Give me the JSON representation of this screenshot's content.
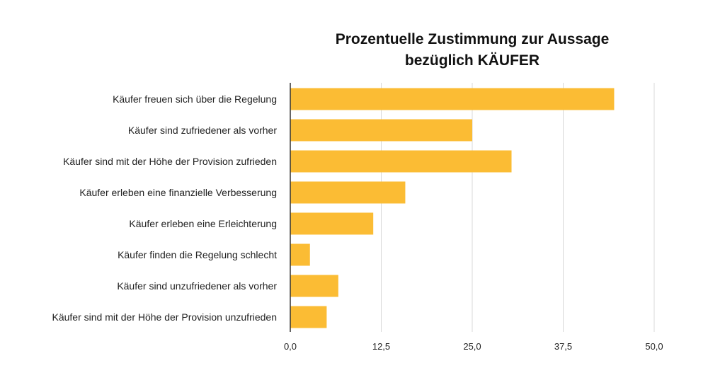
{
  "chart_data": {
    "type": "bar",
    "orientation": "horizontal",
    "title": "Prozentuelle Zustimmung zur Aussage",
    "subtitle": "bezüglich KÄUFER",
    "categories": [
      "Käufer freuen sich über die Regelung",
      "Käufer sind zufriedener als vorher",
      "Käufer sind mit der Höhe der Provision zufrieden",
      "Käufer erleben eine finanzielle Verbesserung",
      "Käufer erleben eine Erleichterung",
      "Käufer finden die Regelung schlecht",
      "Käufer sind unzufriedener als vorher",
      "Käufer sind mit der Höhe der Provision unzufrieden"
    ],
    "values": [
      44.5,
      25.0,
      30.4,
      15.8,
      11.4,
      2.7,
      6.6,
      5.0
    ],
    "xlim": [
      0,
      50
    ],
    "x_ticks": [
      "0,0",
      "12,5",
      "25,0",
      "37,5",
      "50,0"
    ],
    "xlabel": "",
    "ylabel": "",
    "grid": "vertical",
    "legend": "none",
    "bar_color": "#FBBC34",
    "grid_color": "#d9d9d9",
    "axis_color": "#333333"
  }
}
